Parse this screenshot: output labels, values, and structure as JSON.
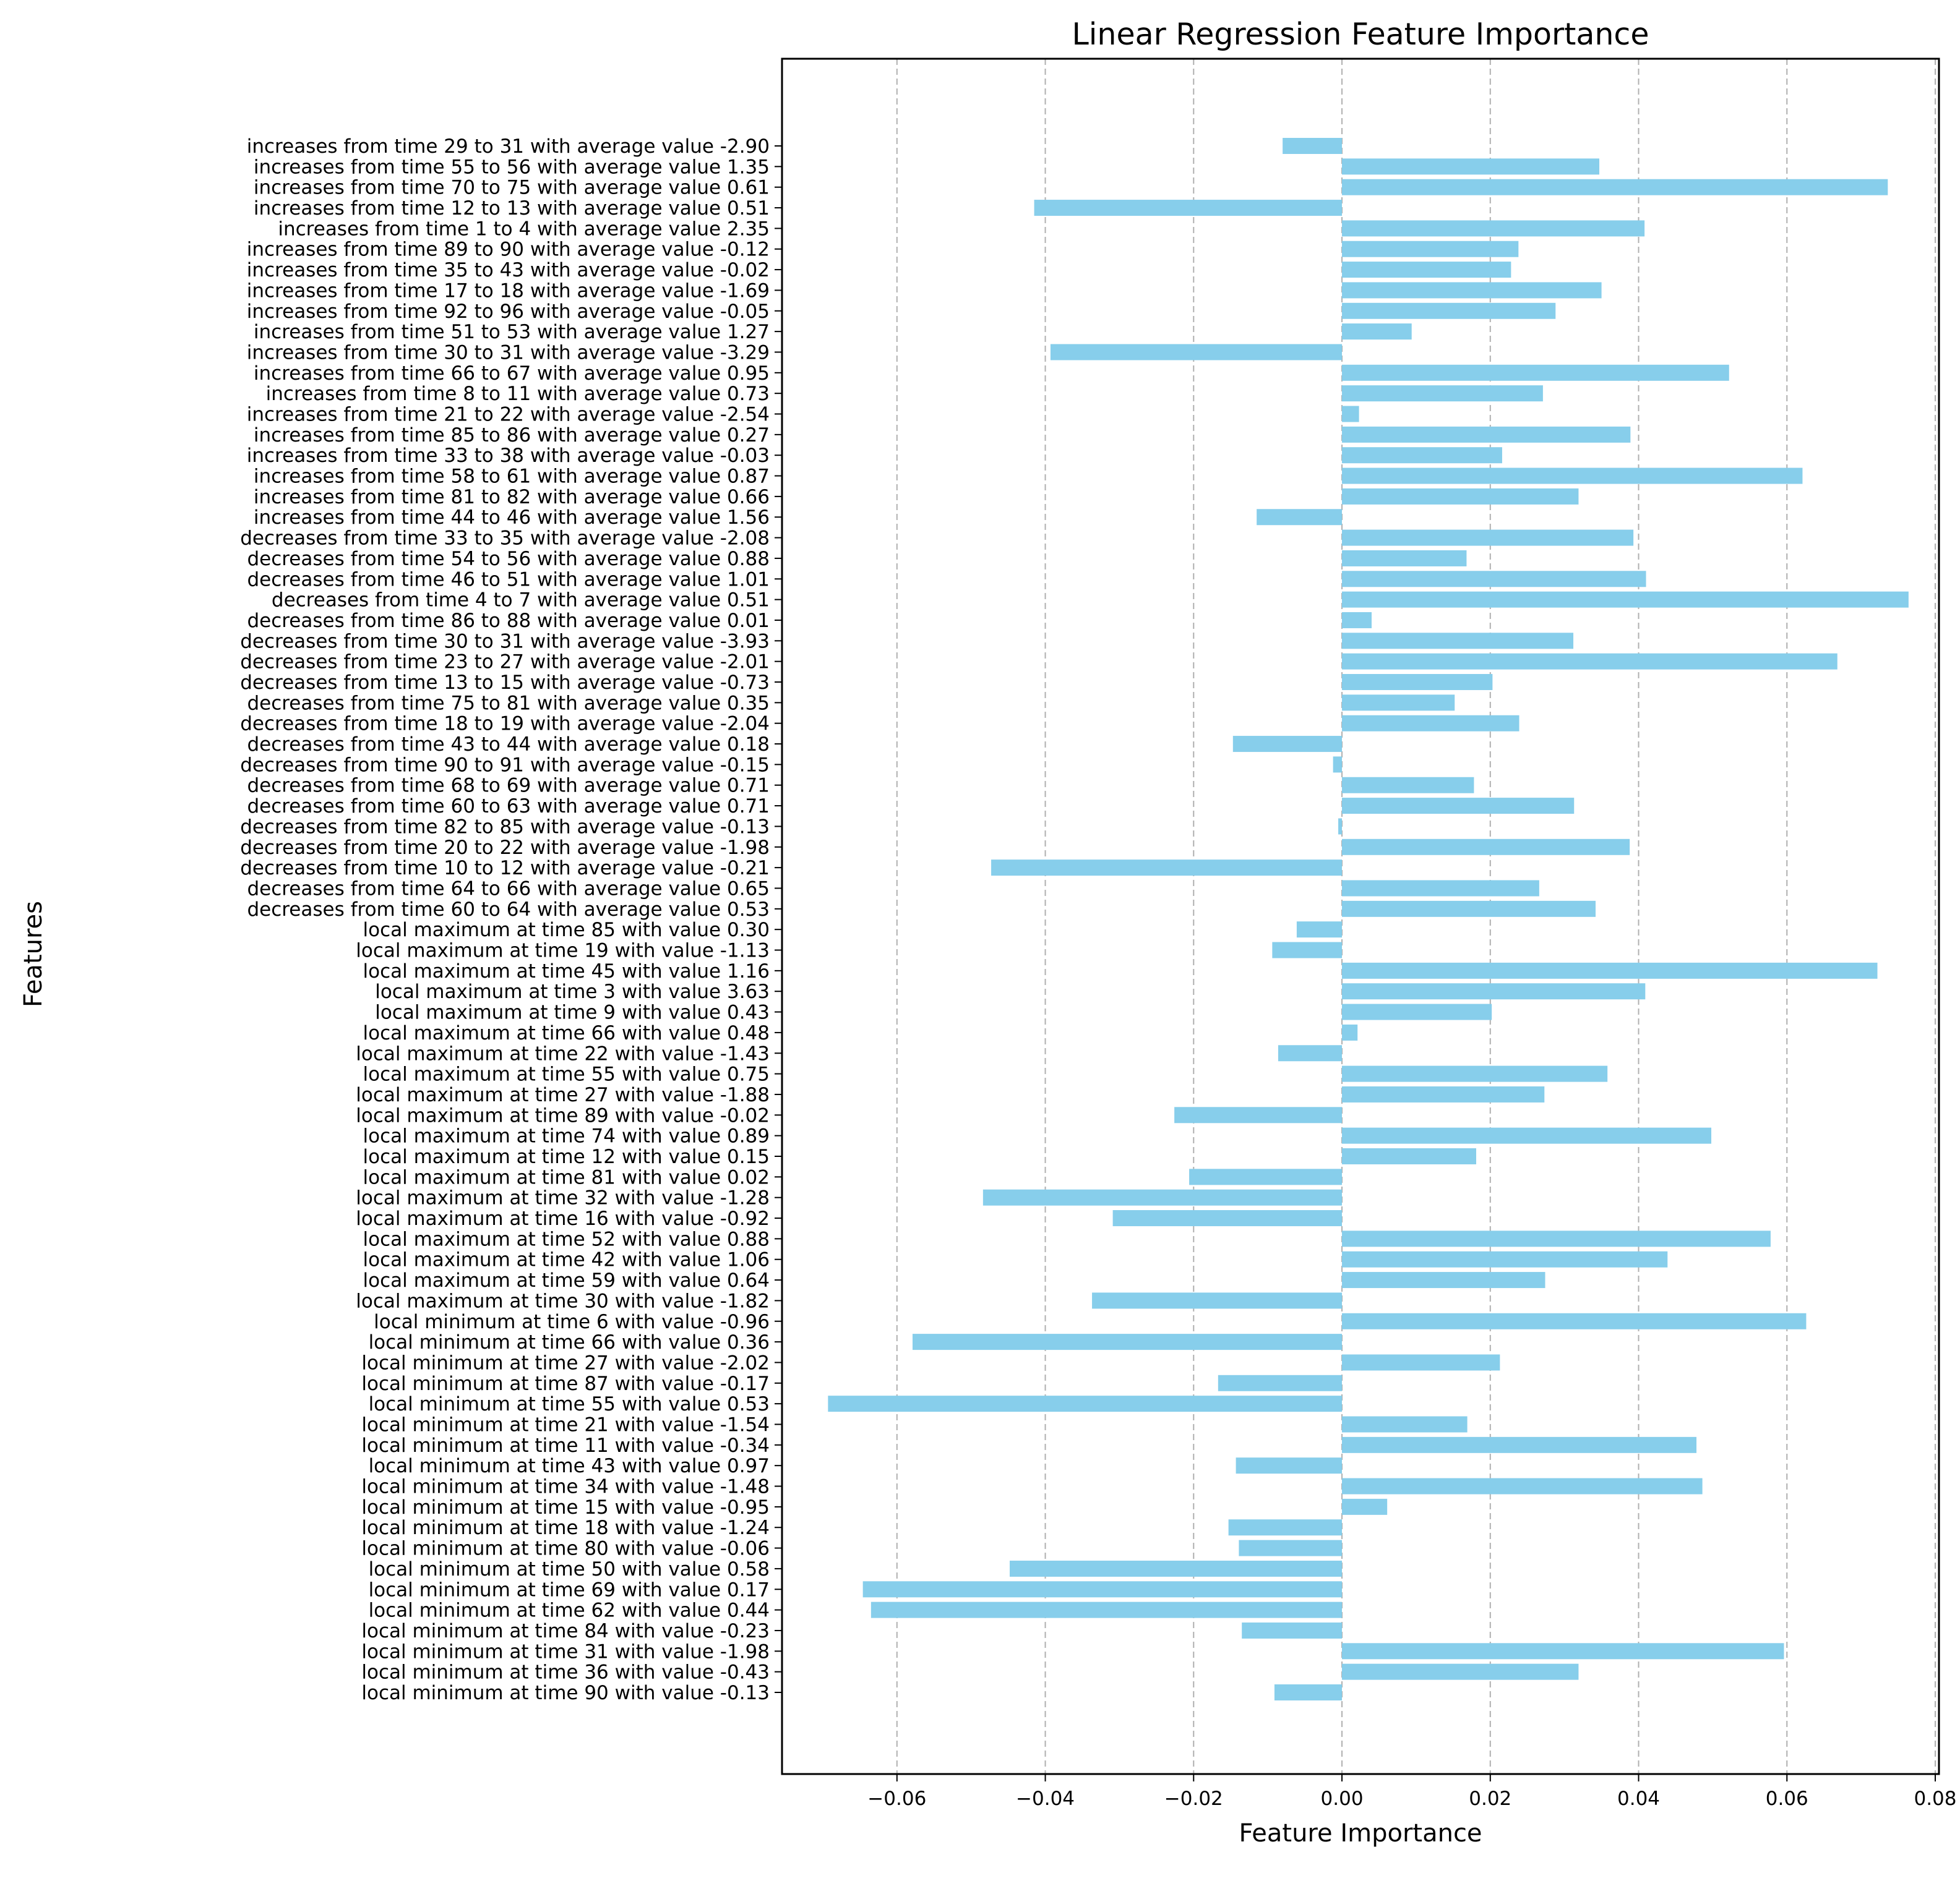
{
  "chart_data": {
    "type": "bar",
    "orientation": "horizontal",
    "title": "Linear Regression Feature Importance",
    "xlabel": "Feature Importance",
    "ylabel": "Features",
    "xlim": [
      -0.0755,
      0.0805
    ],
    "xticks": [
      -0.06,
      -0.04,
      -0.02,
      0.0,
      0.02,
      0.04,
      0.06,
      0.08
    ],
    "xtick_labels": [
      "−0.06",
      "−0.04",
      "−0.02",
      "0.00",
      "0.02",
      "0.04",
      "0.06",
      "0.08"
    ],
    "grid": {
      "x": true,
      "y": false,
      "style": "dashed",
      "color": "#b0b0b0"
    },
    "bar_color": "#87CEEB",
    "categories": [
      "increases from time 29 to 31 with average value -2.90",
      "increases from time 55 to 56 with average value 1.35",
      "increases from time 70 to 75 with average value 0.61",
      "increases from time 12 to 13 with average value 0.51",
      "increases from time 1 to 4 with average value 2.35",
      "increases from time 89 to 90 with average value -0.12",
      "increases from time 35 to 43 with average value -0.02",
      "increases from time 17 to 18 with average value -1.69",
      "increases from time 92 to 96 with average value -0.05",
      "increases from time 51 to 53 with average value 1.27",
      "increases from time 30 to 31 with average value -3.29",
      "increases from time 66 to 67 with average value 0.95",
      "increases from time 8 to 11 with average value 0.73",
      "increases from time 21 to 22 with average value -2.54",
      "increases from time 85 to 86 with average value 0.27",
      "increases from time 33 to 38 with average value -0.03",
      "increases from time 58 to 61 with average value 0.87",
      "increases from time 81 to 82 with average value 0.66",
      "increases from time 44 to 46 with average value 1.56",
      "decreases from time 33 to 35 with average value -2.08",
      "decreases from time 54 to 56 with average value 0.88",
      "decreases from time 46 to 51 with average value 1.01",
      "decreases from time 4 to 7 with average value 0.51",
      "decreases from time 86 to 88 with average value 0.01",
      "decreases from time 30 to 31 with average value -3.93",
      "decreases from time 23 to 27 with average value -2.01",
      "decreases from time 13 to 15 with average value -0.73",
      "decreases from time 75 to 81 with average value 0.35",
      "decreases from time 18 to 19 with average value -2.04",
      "decreases from time 43 to 44 with average value 0.18",
      "decreases from time 90 to 91 with average value -0.15",
      "decreases from time 68 to 69 with average value 0.71",
      "decreases from time 60 to 63 with average value 0.71",
      "decreases from time 82 to 85 with average value -0.13",
      "decreases from time 20 to 22 with average value -1.98",
      "decreases from time 10 to 12 with average value -0.21",
      "decreases from time 64 to 66 with average value 0.65",
      "decreases from time 60 to 64 with average value 0.53",
      "local maximum at time 85 with value 0.30",
      "local maximum at time 19 with value -1.13",
      "local maximum at time 45 with value 1.16",
      "local maximum at time 3 with value 3.63",
      "local maximum at time 9 with value 0.43",
      "local maximum at time 66 with value 0.48",
      "local maximum at time 22 with value -1.43",
      "local maximum at time 55 with value 0.75",
      "local maximum at time 27 with value -1.88",
      "local maximum at time 89 with value -0.02",
      "local maximum at time 74 with value 0.89",
      "local maximum at time 12 with value 0.15",
      "local maximum at time 81 with value 0.02",
      "local maximum at time 32 with value -1.28",
      "local maximum at time 16 with value -0.92",
      "local maximum at time 52 with value 0.88",
      "local maximum at time 42 with value 1.06",
      "local maximum at time 59 with value 0.64",
      "local maximum at time 30 with value -1.82",
      "local minimum at time 6 with value -0.96",
      "local minimum at time 66 with value 0.36",
      "local minimum at time 27 with value -2.02",
      "local minimum at time 87 with value -0.17",
      "local minimum at time 55 with value 0.53",
      "local minimum at time 21 with value -1.54",
      "local minimum at time 11 with value -0.34",
      "local minimum at time 43 with value 0.97",
      "local minimum at time 34 with value -1.48",
      "local minimum at time 15 with value -0.95",
      "local minimum at time 18 with value -1.24",
      "local minimum at time 80 with value -0.06",
      "local minimum at time 50 with value 0.58",
      "local minimum at time 69 with value 0.17",
      "local minimum at time 62 with value 0.44",
      "local minimum at time 84 with value -0.23",
      "local minimum at time 31 with value -1.98",
      "local minimum at time 36 with value -0.43",
      "local minimum at time 90 with value -0.13"
    ],
    "values": [
      -0.008,
      0.0347,
      0.0736,
      -0.0415,
      0.0408,
      0.0238,
      0.0228,
      0.035,
      0.0288,
      0.0094,
      -0.0393,
      0.0522,
      0.0271,
      0.0023,
      0.0389,
      0.0216,
      0.0621,
      0.0319,
      -0.0115,
      0.0393,
      0.0168,
      0.041,
      0.0764,
      0.004,
      0.0312,
      0.0668,
      0.0203,
      0.0152,
      0.0239,
      -0.0147,
      -0.0012,
      0.0178,
      0.0313,
      -0.0005,
      0.0388,
      -0.0473,
      0.0266,
      0.0342,
      -0.0061,
      -0.0094,
      0.0722,
      0.0409,
      0.0202,
      0.0021,
      -0.0086,
      0.0358,
      0.0273,
      -0.0226,
      0.0498,
      0.0181,
      -0.0206,
      -0.0484,
      -0.0309,
      0.0578,
      0.0439,
      0.0274,
      -0.0337,
      0.0626,
      -0.0579,
      0.0213,
      -0.0167,
      -0.0693,
      0.0169,
      0.0478,
      -0.0143,
      0.0486,
      0.0061,
      -0.0153,
      -0.0139,
      -0.0448,
      -0.0646,
      -0.0635,
      -0.0135,
      0.0596,
      0.0319,
      -0.0091
    ]
  }
}
